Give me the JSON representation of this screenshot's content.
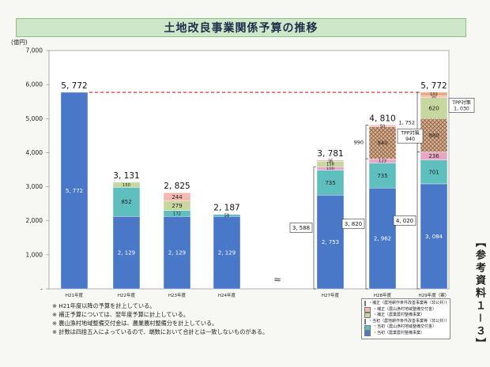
{
  "title": "土地改良事業関係予算の推移",
  "side_label": "【参考資料１－３】",
  "notes": [
    "※ H21年度以降の予算を計上している。",
    "※ 補正予算については、翌年度予算に計上している。",
    "※ 農山漁村地域整備交付金は、農業農村整備分を計上している。",
    "※ 計数は四捨五入によっているので、端数において合計とは一致しないものがある。"
  ],
  "legend": [
    {
      "label": "補正（農地耕作条件改善事業等（非公共））",
      "color": "#f0a77e"
    },
    {
      "label": "補正（農山漁村地域整備交付金）",
      "color": "#f4b9b0"
    },
    {
      "label": "補正（農業農村整備事業）",
      "color": "#c6d7a0"
    },
    {
      "label": "当初（農地耕作条件改善事業等（非公共））",
      "color": "#e9a7c8"
    },
    {
      "label": "当初（農山漁村地域整備交付金）",
      "color": "#5fbfbf"
    },
    {
      "label": "当初（農業農村整備事業）",
      "color": "#4a78c8"
    }
  ],
  "chart_data": {
    "type": "bar",
    "stacked": true,
    "ylabel": "(億円)",
    "ylim": [
      0,
      7000
    ],
    "yticks": [
      0,
      1000,
      2000,
      3000,
      4000,
      5000,
      6000,
      7000
    ],
    "ytick_labels": [
      "-",
      "1,000",
      "2,000",
      "3,000",
      "4,000",
      "5,000",
      "6,000",
      "7,000"
    ],
    "break_symbol": "≈",
    "grid": false,
    "reference_line": {
      "value": 5772,
      "color": "#e03030",
      "style": "dashed"
    },
    "colors": {
      "initial_nn": "#4a78c8",
      "initial_koufu": "#5fbfbf",
      "initial_hikoukyou": "#e9a7c8",
      "supp_nn": "#c6d7a0",
      "supp_koufu": "#f4b9b0",
      "supp_hikoukyou": "#f0a77e",
      "tpp_hatch": "#c99a7a"
    },
    "bars": [
      {
        "category": "H21年度",
        "total": "5, 772",
        "segments": [
          {
            "value": 5772,
            "label": "5, 772",
            "color": "initial_nn"
          }
        ]
      },
      {
        "category": "H22年度",
        "total": "3, 131",
        "segments": [
          {
            "value": 2129,
            "label": "2, 129",
            "color": "initial_nn"
          },
          {
            "value": 852,
            "label": "852",
            "color": "initial_koufu"
          },
          {
            "value": 150,
            "label": "150",
            "color": "supp_nn"
          }
        ]
      },
      {
        "category": "H23年度",
        "total": "2, 825",
        "segments": [
          {
            "value": 2129,
            "label": "2, 129",
            "color": "initial_nn"
          },
          {
            "value": 172,
            "label": "172",
            "color": "initial_koufu"
          },
          {
            "value": 279,
            "label": "279",
            "color": "supp_nn"
          },
          {
            "value": 244,
            "label": "244",
            "color": "supp_koufu"
          }
        ]
      },
      {
        "category": "H24年度",
        "total": "2, 187",
        "segments": [
          {
            "value": 2129,
            "label": "2, 129",
            "color": "initial_nn"
          },
          {
            "value": 58,
            "label": "58",
            "color": "initial_koufu"
          }
        ]
      },
      {
        "category": "H27年度",
        "total": "3, 781",
        "segments": [
          {
            "value": 2753,
            "label": "2, 753",
            "color": "initial_nn"
          },
          {
            "value": 735,
            "label": "735",
            "color": "initial_koufu"
          },
          {
            "value": 100,
            "label": "100",
            "color": "initial_hikoukyou"
          },
          {
            "value": 158,
            "label": "158",
            "color": "supp_nn"
          },
          {
            "value": 36,
            "label": "36",
            "color": "supp_koufu"
          }
        ]
      },
      {
        "category": "H28年度",
        "total": "4, 810",
        "segments": [
          {
            "value": 2962,
            "label": "2, 962",
            "color": "initial_nn"
          },
          {
            "value": 735,
            "label": "735",
            "color": "initial_koufu"
          },
          {
            "value": 123,
            "label": "123",
            "color": "initial_hikoukyou"
          },
          {
            "value": 940,
            "label": "940",
            "color": "tpp_hatch"
          },
          {
            "value": 50,
            "label": "50",
            "color": "supp_koufu"
          }
        ]
      },
      {
        "category": "H29年度（案）",
        "total": "5, 772",
        "segments": [
          {
            "value": 3084,
            "label": "3, 084",
            "color": "initial_nn"
          },
          {
            "value": 701,
            "label": "701",
            "color": "initial_koufu"
          },
          {
            "value": 236,
            "label": "236",
            "color": "initial_hikoukyou"
          },
          {
            "value": 980,
            "label": "980",
            "color": "tpp_hatch"
          },
          {
            "value": 620,
            "label": "620",
            "color": "supp_nn"
          },
          {
            "value": 50,
            "label": "50",
            "color": "supp_koufu"
          },
          {
            "value": 102,
            "label": "102",
            "color": "supp_hikoukyou"
          }
        ]
      }
    ],
    "annotations": [
      {
        "bar": "H27年度",
        "text": "3, 588",
        "kind": "initial_bracket",
        "range": [
          0,
          3588
        ]
      },
      {
        "bar": "H28年度",
        "text": "3, 820",
        "kind": "initial_bracket",
        "range": [
          0,
          3820
        ]
      },
      {
        "bar": "H29年度（案）",
        "text": "4, 020",
        "kind": "initial_bracket",
        "range": [
          0,
          4020
        ]
      },
      {
        "bar": "H28年度",
        "text": "990",
        "kind": "supp_bracket",
        "range": [
          3820,
          4810
        ]
      },
      {
        "bar": "H29年度（案）",
        "text": "1, 752",
        "kind": "supp_bracket",
        "range": [
          4020,
          5772
        ]
      },
      {
        "bar": "H28年度",
        "text": "TPP対策\n940",
        "kind": "box"
      },
      {
        "bar": "H29年度（案）",
        "text": "TPP対策\n1, 030",
        "kind": "box"
      }
    ]
  }
}
